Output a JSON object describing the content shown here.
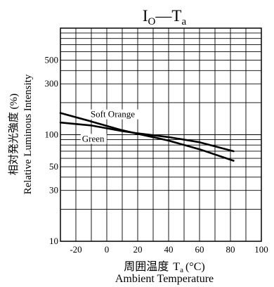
{
  "chart_data": {
    "type": "line",
    "title": {
      "main": "I",
      "main_sub": "O",
      "dash": "—",
      "second": "T",
      "second_sub": "a"
    },
    "xlabel": {
      "jp_prefix": "周囲温度",
      "symbol": "T",
      "symbol_sub": "a",
      "unit": "(°C)",
      "en": "Ambient Temperature"
    },
    "ylabel": {
      "jp": "相対発光強度 (%)",
      "en": "Relative Luminous Intensity"
    },
    "x_scale": "linear",
    "y_scale": "log",
    "xlim": [
      -30,
      100
    ],
    "ylim": [
      10,
      1000
    ],
    "x_ticks": [
      -20,
      0,
      20,
      40,
      60,
      80,
      100
    ],
    "y_ticks": [
      10,
      30,
      50,
      100,
      300,
      500
    ],
    "grid": true,
    "series": [
      {
        "name": "Soft Orange",
        "x": [
          -30,
          -10,
          10,
          20,
          40,
          60,
          82
        ],
        "y": [
          160,
          133,
          110,
          102,
          88,
          73,
          57
        ]
      },
      {
        "name": "Green",
        "x": [
          -30,
          -10,
          10,
          20,
          40,
          60,
          82
        ],
        "y": [
          130,
          122,
          108,
          103,
          95,
          85,
          70
        ]
      }
    ]
  }
}
